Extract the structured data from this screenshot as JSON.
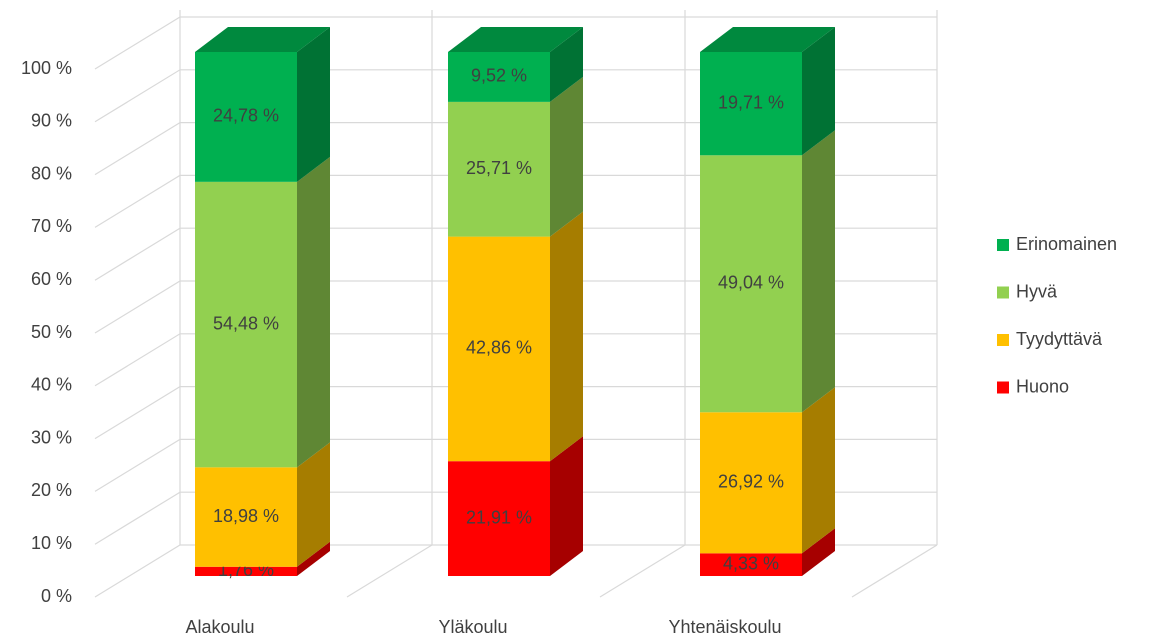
{
  "chart_data": {
    "type": "bar",
    "stacked": true,
    "three_d": true,
    "categories": [
      "Alakoulu",
      "Yläkoulu",
      "Yhtenäiskoulu"
    ],
    "series": [
      {
        "name": "Huono",
        "color": "#ff0000",
        "values": [
          1.76,
          21.91,
          4.33
        ],
        "value_labels": [
          "1,76 %",
          "21,91 %",
          "4,33 %"
        ]
      },
      {
        "name": "Tyydyttävä",
        "color": "#ffc000",
        "values": [
          18.98,
          42.86,
          26.92
        ],
        "value_labels": [
          "18,98 %",
          "42,86 %",
          "26,92 %"
        ]
      },
      {
        "name": "Hyvä",
        "color": "#92d050",
        "values": [
          54.48,
          25.71,
          49.04
        ],
        "value_labels": [
          "54,48 %",
          "25,71 %",
          "49,04 %"
        ]
      },
      {
        "name": "Erinomainen",
        "color": "#00b050",
        "values": [
          24.78,
          9.52,
          19.71
        ],
        "value_labels": [
          "24,78 %",
          "9,52 %",
          "19,71 %"
        ]
      }
    ],
    "ylim": [
      0,
      100
    ],
    "yticks": [
      {
        "value": 0,
        "label": "0 %"
      },
      {
        "value": 10,
        "label": "10 %"
      },
      {
        "value": 20,
        "label": "20 %"
      },
      {
        "value": 30,
        "label": "30 %"
      },
      {
        "value": 40,
        "label": "40 %"
      },
      {
        "value": 50,
        "label": "50 %"
      },
      {
        "value": 60,
        "label": "60 %"
      },
      {
        "value": 70,
        "label": "70 %"
      },
      {
        "value": 80,
        "label": "80 %"
      },
      {
        "value": 90,
        "label": "90 %"
      },
      {
        "value": 100,
        "label": "100 %"
      }
    ],
    "grid": true,
    "legend": "right"
  }
}
